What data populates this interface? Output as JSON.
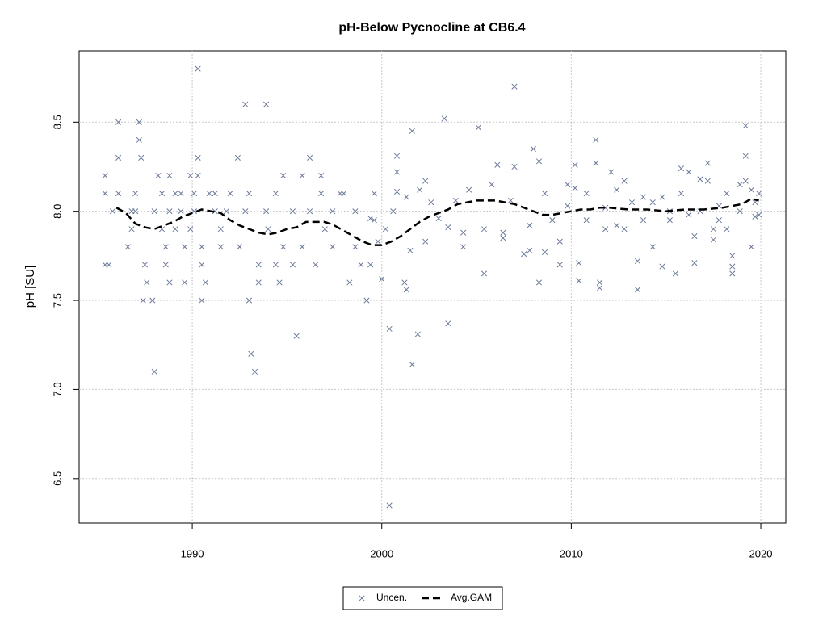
{
  "chart_data": {
    "type": "scatter",
    "title": "pH-Below Pycnocline at CB6.4",
    "y_label": "pH [SU]",
    "xlim": [
      1984.03,
      2021.32
    ],
    "ylim": [
      6.25,
      8.9
    ],
    "xticks": [
      1990,
      2000,
      2010,
      2020
    ],
    "yticks": [
      6.5,
      {
        "value": 7,
        "label": "7.0"
      },
      7.5,
      {
        "value": 8,
        "label": "8.0"
      },
      8.5
    ],
    "grid": true,
    "legend": "bottom",
    "series": [
      {
        "name": "Uncen.",
        "type": "scatter",
        "color": "#6b7a99",
        "x": [
          1985.4,
          1985.4,
          1985.4,
          1985.6,
          1985.8,
          1986.1,
          1986.1,
          1986.1,
          1986.6,
          1986.8,
          1986.8,
          1987.0,
          1987.0,
          1987.2,
          1987.2,
          1987.3,
          1987.4,
          1987.5,
          1987.6,
          1987.9,
          1988.0,
          1988.0,
          1988.2,
          1988.4,
          1988.4,
          1988.6,
          1988.6,
          1988.8,
          1988.8,
          1988.8,
          1989.1,
          1989.1,
          1989.4,
          1989.4,
          1989.6,
          1989.6,
          1989.9,
          1989.9,
          1990.1,
          1990.1,
          1990.3,
          1990.3,
          1990.3,
          1990.5,
          1990.5,
          1990.5,
          1990.7,
          1990.9,
          1991.2,
          1991.2,
          1991.5,
          1991.5,
          1991.8,
          1992.0,
          1992.4,
          1992.5,
          1992.8,
          1992.8,
          1993.0,
          1993.0,
          1993.1,
          1993.3,
          1993.5,
          1993.5,
          1993.9,
          1993.9,
          1994.0,
          1994.4,
          1994.4,
          1994.6,
          1994.8,
          1994.8,
          1995.3,
          1995.3,
          1995.5,
          1995.8,
          1995.8,
          1996.2,
          1996.2,
          1996.5,
          1996.8,
          1996.8,
          1997.0,
          1997.4,
          1997.4,
          1997.8,
          1998.0,
          1998.3,
          1998.6,
          1998.6,
          1998.9,
          1999.2,
          1999.4,
          1999.4,
          1999.6,
          1999.6,
          1999.8,
          2000.0,
          2000.2,
          2000.4,
          2000.4,
          2000.6,
          2000.8,
          2000.8,
          2000.8,
          2001.2,
          2001.3,
          2001.3,
          2001.5,
          2001.6,
          2001.6,
          2001.9,
          2002.0,
          2002.3,
          2002.3,
          2002.6,
          2003.0,
          2003.3,
          2003.5,
          2003.5,
          2003.9,
          2004.3,
          2004.3,
          2004.6,
          2005.1,
          2005.4,
          2005.4,
          2005.8,
          2006.1,
          2006.4,
          2006.4,
          2006.8,
          2007.0,
          2007.0,
          2007.5,
          2007.8,
          2007.8,
          2008.0,
          2008.3,
          2008.3,
          2008.6,
          2008.6,
          2009.0,
          2009.4,
          2009.4,
          2009.8,
          2009.8,
          2010.2,
          2010.2,
          2010.4,
          2010.4,
          2010.8,
          2010.8,
          2011.3,
          2011.3,
          2011.5,
          2011.5,
          2011.8,
          2011.8,
          2012.1,
          2012.4,
          2012.4,
          2012.8,
          2012.8,
          2013.2,
          2013.5,
          2013.5,
          2013.8,
          2013.8,
          2014.3,
          2014.3,
          2014.8,
          2014.8,
          2015.2,
          2015.2,
          2015.5,
          2015.8,
          2015.8,
          2016.2,
          2016.2,
          2016.5,
          2016.5,
          2016.8,
          2016.8,
          2017.2,
          2017.2,
          2017.5,
          2017.5,
          2017.8,
          2017.8,
          2018.2,
          2018.2,
          2018.5,
          2018.5,
          2018.5,
          2018.9,
          2018.9,
          2019.2,
          2019.2,
          2019.2,
          2019.5,
          2019.5,
          2019.7,
          2019.7,
          2019.9,
          2019.9
        ],
        "values": [
          8.2,
          8.1,
          7.7,
          7.7,
          8.0,
          8.5,
          8.3,
          8.1,
          7.8,
          7.9,
          8.0,
          8.1,
          8.0,
          8.5,
          8.4,
          8.3,
          7.5,
          7.7,
          7.6,
          7.5,
          7.1,
          8.0,
          8.2,
          8.1,
          7.9,
          7.7,
          7.8,
          7.6,
          8.0,
          8.2,
          8.1,
          7.9,
          8.1,
          8.0,
          7.6,
          7.8,
          8.2,
          7.9,
          8.0,
          8.1,
          8.8,
          8.3,
          8.2,
          7.7,
          7.5,
          7.8,
          7.6,
          8.1,
          8.1,
          8.0,
          7.9,
          7.8,
          8.0,
          8.1,
          8.3,
          7.8,
          8.0,
          8.6,
          8.1,
          7.5,
          7.2,
          7.1,
          7.7,
          7.6,
          8.6,
          8.0,
          7.9,
          8.1,
          7.7,
          7.6,
          8.2,
          7.8,
          8.0,
          7.7,
          7.3,
          8.2,
          7.8,
          8.3,
          8.0,
          7.7,
          8.2,
          8.1,
          7.9,
          8.0,
          7.8,
          8.1,
          8.1,
          7.6,
          7.8,
          8.0,
          7.7,
          7.5,
          7.7,
          7.96,
          8.1,
          7.95,
          7.83,
          7.62,
          7.9,
          6.35,
          7.34,
          8.0,
          8.22,
          8.31,
          8.11,
          7.6,
          8.08,
          7.56,
          7.78,
          8.45,
          7.14,
          7.31,
          8.12,
          8.17,
          7.83,
          8.05,
          7.96,
          8.52,
          7.37,
          7.91,
          8.06,
          7.8,
          7.88,
          8.12,
          8.47,
          7.65,
          7.9,
          8.15,
          8.26,
          7.85,
          7.88,
          8.06,
          8.7,
          8.25,
          7.76,
          7.78,
          7.92,
          8.35,
          7.6,
          8.28,
          7.77,
          8.1,
          7.95,
          7.7,
          7.83,
          8.15,
          8.03,
          8.26,
          8.13,
          7.61,
          7.71,
          8.1,
          7.95,
          8.4,
          8.27,
          7.57,
          7.6,
          7.9,
          8.02,
          8.22,
          8.12,
          7.92,
          8.17,
          7.9,
          8.05,
          7.56,
          7.72,
          8.08,
          7.95,
          8.05,
          7.8,
          7.69,
          8.08,
          8.0,
          7.95,
          7.65,
          8.24,
          8.1,
          8.22,
          7.98,
          7.71,
          7.86,
          8.18,
          8.0,
          8.27,
          8.17,
          7.84,
          7.9,
          7.95,
          8.03,
          8.1,
          7.9,
          7.75,
          7.69,
          7.65,
          8.15,
          8.0,
          8.48,
          8.31,
          8.17,
          7.8,
          8.12,
          7.97,
          8.05,
          8.1,
          7.98
        ]
      },
      {
        "name": "Avg.GAM",
        "type": "line",
        "color": "#000000",
        "x": [
          1986.0,
          1986.5,
          1987.0,
          1987.5,
          1988.0,
          1988.5,
          1989.0,
          1989.5,
          1990.0,
          1990.5,
          1991.0,
          1991.5,
          1992.0,
          1992.5,
          1993.0,
          1993.5,
          1994.0,
          1994.5,
          1995.0,
          1995.5,
          1996.0,
          1996.5,
          1997.0,
          1997.5,
          1998.0,
          1998.5,
          1999.0,
          1999.5,
          2000.0,
          2000.5,
          2001.0,
          2001.5,
          2002.0,
          2002.5,
          2003.0,
          2003.5,
          2004.0,
          2004.5,
          2005.0,
          2005.5,
          2006.0,
          2006.5,
          2007.0,
          2007.5,
          2008.0,
          2008.5,
          2009.0,
          2009.5,
          2010.0,
          2010.5,
          2011.0,
          2011.5,
          2012.0,
          2013.0,
          2014.0,
          2015.0,
          2016.0,
          2017.0,
          2018.0,
          2019.0,
          2019.5,
          2019.9
        ],
        "values": [
          8.02,
          7.99,
          7.93,
          7.91,
          7.9,
          7.92,
          7.94,
          7.97,
          7.99,
          8.01,
          8.0,
          7.99,
          7.95,
          7.92,
          7.9,
          7.88,
          7.87,
          7.88,
          7.9,
          7.91,
          7.94,
          7.94,
          7.94,
          7.92,
          7.89,
          7.86,
          7.83,
          7.81,
          7.81,
          7.83,
          7.86,
          7.9,
          7.94,
          7.97,
          7.99,
          8.01,
          8.04,
          8.05,
          8.06,
          8.06,
          8.06,
          8.05,
          8.04,
          8.02,
          8.0,
          7.98,
          7.98,
          7.99,
          8.0,
          8.01,
          8.01,
          8.02,
          8.02,
          8.01,
          8.01,
          8.0,
          8.01,
          8.01,
          8.02,
          8.04,
          8.07,
          8.06
        ]
      }
    ]
  }
}
